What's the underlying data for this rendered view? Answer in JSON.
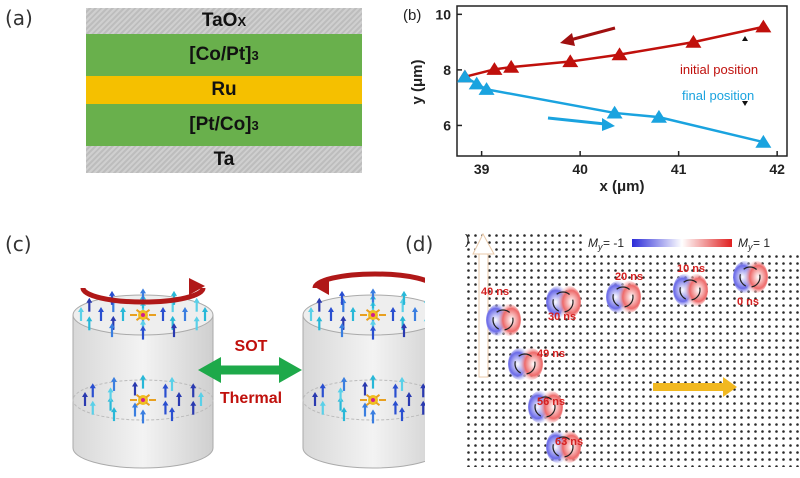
{
  "panel_labels": {
    "a": "(a)",
    "b": "(b)",
    "c": "(c)",
    "d": "(d)",
    "d_prefix": ")"
  },
  "stack": [
    {
      "main": "TaO",
      "sub": "X",
      "color": "grey"
    },
    {
      "main": "[Co/Pt]",
      "sub": "3",
      "color": "green"
    },
    {
      "main": "Ru",
      "sub": "",
      "color": "yellow"
    },
    {
      "main": "[Pt/Co]",
      "sub": "3",
      "color": "green"
    },
    {
      "main": "Ta",
      "sub": "",
      "color": "grey"
    }
  ],
  "chart_data": {
    "type": "line",
    "xlabel": "x (μm)",
    "ylabel": "y (μm)",
    "xlim": [
      38.75,
      42.1
    ],
    "ylim": [
      4.9,
      10.3
    ],
    "xticks": [
      39,
      40,
      41,
      42
    ],
    "yticks": [
      6,
      8,
      10
    ],
    "series": [
      {
        "name": "initial position",
        "color": "#c0100c",
        "x": [
          38.83,
          39.13,
          39.3,
          39.9,
          40.4,
          41.15,
          41.86
        ],
        "y": [
          7.75,
          8.02,
          8.1,
          8.3,
          8.55,
          9.0,
          9.55
        ]
      },
      {
        "name": "final position",
        "color": "#1aa3df",
        "x": [
          38.83,
          38.95,
          39.05,
          40.35,
          40.8,
          41.86
        ],
        "y": [
          7.75,
          7.5,
          7.3,
          6.45,
          6.3,
          5.4
        ]
      }
    ]
  },
  "panel_c": {
    "arrow_top": "SOT",
    "arrow_bottom": "Thermal"
  },
  "panel_d": {
    "legend_left": "= -1",
    "legend_right": "= 1",
    "legend_symbol": "M",
    "legend_sub": "y",
    "labels": [
      {
        "text": "40 ns"
      },
      {
        "text": "30 ns"
      },
      {
        "text": "20 ns"
      },
      {
        "text": "10 ns"
      },
      {
        "text": "0 ns"
      },
      {
        "text": "49 ns"
      },
      {
        "text": "56 ns"
      },
      {
        "text": "63 ns"
      }
    ]
  },
  "colors": {
    "red": "#c0100c",
    "blue": "#1aa3df",
    "green": "#1ea94a",
    "orange": "#f1b820"
  }
}
